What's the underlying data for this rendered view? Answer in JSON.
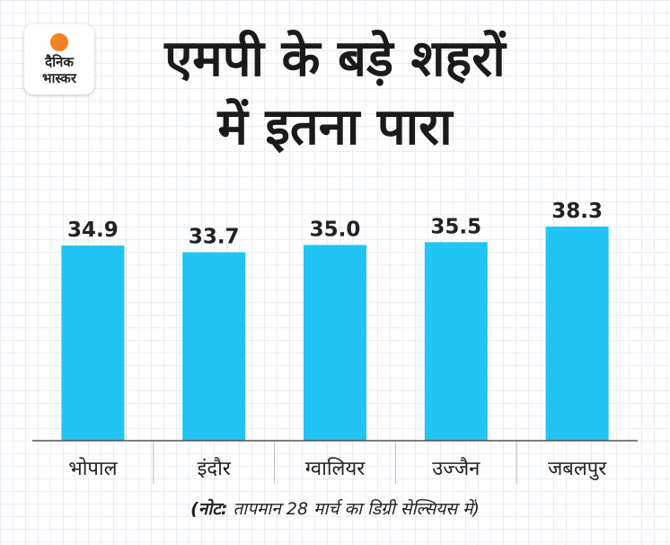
{
  "logo": {
    "line1": "दैनिक",
    "line2": "भास्कर"
  },
  "title": {
    "line1": "एमपी के बड़े शहरों",
    "line2": "में इतना पारा"
  },
  "note": {
    "prefix": "(नोट:",
    "text": " तापमान 28 मार्च का डिग्री सेल्सियस में)"
  },
  "colors": {
    "bar": "#22c4f3",
    "axis": "#555555",
    "text": "#222222"
  },
  "chart_data": {
    "type": "bar",
    "categories": [
      "भोपाल",
      "इंदौर",
      "ग्वालियर",
      "उज्जैन",
      "जबलपुर"
    ],
    "values": [
      34.9,
      33.7,
      35.0,
      35.5,
      38.3
    ],
    "value_labels": [
      "34.9",
      "33.7",
      "35.0",
      "35.5",
      "38.3"
    ],
    "title": "एमपी के बड़े शहरों में इतना पारा",
    "xlabel": "",
    "ylabel": "",
    "ylim": [
      0,
      46
    ]
  }
}
